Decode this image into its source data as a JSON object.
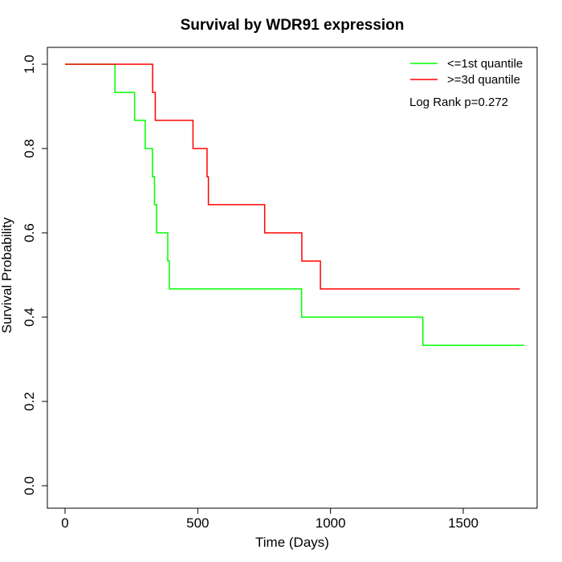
{
  "chart_data": {
    "type": "line",
    "step": true,
    "title": "Survival by WDR91 expression",
    "xlabel": "Time (Days)",
    "ylabel": "Survival Probability",
    "xlim": [
      0,
      1750
    ],
    "ylim": [
      0,
      1.0
    ],
    "xticks": [
      0,
      500,
      1000,
      1500
    ],
    "xtick_labels": [
      "0",
      "500",
      "1000",
      "1500"
    ],
    "yticks": [
      0.0,
      0.2,
      0.4,
      0.6,
      0.8,
      1.0
    ],
    "ytick_labels": [
      "0.0",
      "0.2",
      "0.4",
      "0.6",
      "0.8",
      "1.0"
    ],
    "grid": false,
    "legend_position": "top-right",
    "annotation": "Log Rank p=0.272",
    "series": [
      {
        "name": "<=1st quantile",
        "color": "#00ff00",
        "x": [
          0,
          188,
          262,
          302,
          329,
          337,
          345,
          387,
          393,
          891,
          1348,
          1730
        ],
        "y": [
          1.0,
          0.933,
          0.867,
          0.8,
          0.733,
          0.667,
          0.6,
          0.533,
          0.467,
          0.4,
          0.333,
          0.333
        ]
      },
      {
        "name": ">=3d quantile",
        "color": "#ff0000",
        "x": [
          0,
          330,
          340,
          482,
          535,
          540,
          752,
          892,
          962,
          1713
        ],
        "y": [
          1.0,
          0.933,
          0.867,
          0.8,
          0.733,
          0.667,
          0.6,
          0.533,
          0.467,
          0.467
        ]
      }
    ]
  }
}
